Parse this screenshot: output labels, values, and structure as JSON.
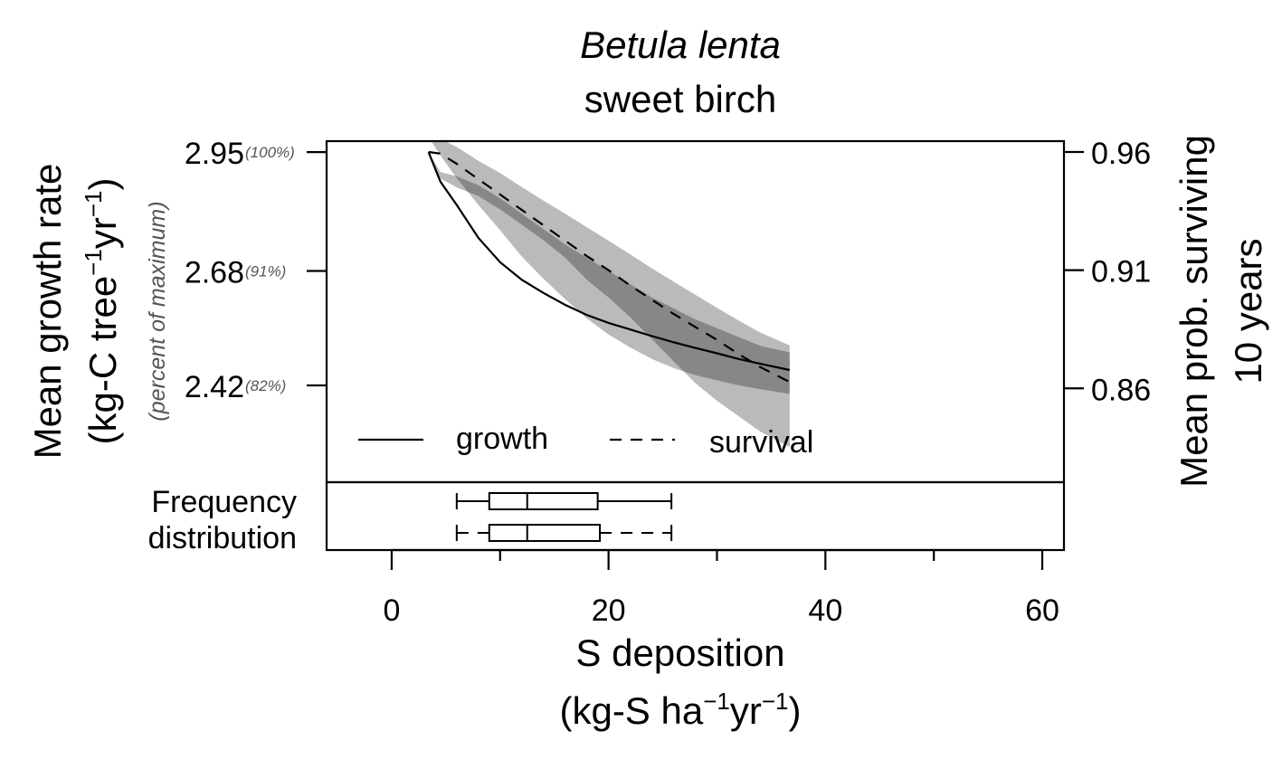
{
  "chart_data": {
    "type": "line",
    "title": "Betula lenta",
    "subtitle": "sweet birch",
    "xlabel": "S deposition",
    "xlabel_units": {
      "base": "(kg-S ha",
      "exp1": "−1",
      "mid": "yr",
      "exp2": "−1",
      "end": ")"
    },
    "ylabel_left": "Mean growth rate",
    "ylabel_left_units": {
      "base": "(kg-C tree",
      "exp1": "−1",
      "mid": "yr",
      "exp2": "−1",
      "end": ")"
    },
    "ylabel_left_sub": "(percent of maximum)",
    "ylabel_right_line1": "Mean prob. surviving",
    "ylabel_right_line2": "10 years",
    "xlim": [
      -6,
      62
    ],
    "x_ticks": [
      0,
      20,
      40,
      60
    ],
    "x_minor_ticks": [
      10,
      30,
      50
    ],
    "y_left_lim": [
      2.2,
      2.975
    ],
    "y_left_ticks": [
      {
        "value": 2.95,
        "label": "2.95",
        "pct": "(100%)"
      },
      {
        "value": 2.68,
        "label": "2.68",
        "pct": "(91%)"
      },
      {
        "value": 2.42,
        "label": "2.42",
        "pct": "(82%)"
      }
    ],
    "y_right_lim": [
      0.8203,
      0.9646
    ],
    "y_right_ticks": [
      {
        "value": 0.96,
        "label": "0.96"
      },
      {
        "value": 0.91,
        "label": "0.91"
      },
      {
        "value": 0.86,
        "label": "0.86"
      }
    ],
    "legend": {
      "placement": "bottom-left",
      "growth": "growth",
      "survival": "survival"
    },
    "series": [
      {
        "name": "growth",
        "axis": "left",
        "style": "solid",
        "x": [
          3.4,
          4.5,
          6,
          8,
          10,
          12,
          14,
          16,
          18,
          20,
          22,
          24,
          26,
          28,
          30,
          32,
          34,
          36.7
        ],
        "y": [
          2.95,
          2.883,
          2.83,
          2.755,
          2.7,
          2.66,
          2.63,
          2.603,
          2.58,
          2.562,
          2.547,
          2.532,
          2.518,
          2.505,
          2.493,
          2.48,
          2.469,
          2.455
        ],
        "band_lower": [
          2.95,
          2.89,
          2.87,
          2.85,
          2.82,
          2.785,
          2.75,
          2.71,
          2.66,
          2.62,
          2.575,
          2.525,
          2.475,
          2.425,
          2.385,
          2.35,
          2.315,
          2.28
        ],
        "band_upper": [
          2.95,
          2.905,
          2.895,
          2.875,
          2.845,
          2.81,
          2.775,
          2.74,
          2.71,
          2.68,
          2.65,
          2.62,
          2.595,
          2.57,
          2.55,
          2.53,
          2.51,
          2.495
        ]
      },
      {
        "name": "survival",
        "axis": "right",
        "style": "dashed",
        "x": [
          3.4,
          4.5,
          6,
          8,
          10,
          12,
          14,
          16,
          18,
          20,
          22,
          24,
          26,
          28,
          30,
          32,
          34,
          36.7
        ],
        "y": [
          0.96,
          0.9593,
          0.955,
          0.9485,
          0.942,
          0.9355,
          0.929,
          0.9225,
          0.916,
          0.91,
          0.9035,
          0.8975,
          0.8915,
          0.886,
          0.8805,
          0.8745,
          0.869,
          0.8627
        ],
        "band_lower": [
          0.9663,
          0.9586,
          0.9489,
          0.9376,
          0.9269,
          0.9158,
          0.9064,
          0.8977,
          0.8896,
          0.8828,
          0.8773,
          0.8724,
          0.8686,
          0.8656,
          0.8634,
          0.8613,
          0.8597,
          0.8576
        ],
        "band_upper": [
          0.9663,
          0.9655,
          0.9621,
          0.9563,
          0.9511,
          0.9452,
          0.9394,
          0.9339,
          0.9282,
          0.9225,
          0.9167,
          0.9108,
          0.9052,
          0.8996,
          0.8941,
          0.8887,
          0.8836,
          0.8782
        ]
      }
    ],
    "distribution": {
      "label_line1": "Frequency",
      "label_line2": "distribution",
      "boxes": [
        {
          "style": "solid",
          "min": 6,
          "q1": 9,
          "median": 12.5,
          "q3": 19,
          "max": 25.8
        },
        {
          "style": "dashed",
          "min": 6,
          "q1": 9,
          "median": 12.5,
          "q3": 19.2,
          "max": 25.8
        }
      ]
    }
  }
}
